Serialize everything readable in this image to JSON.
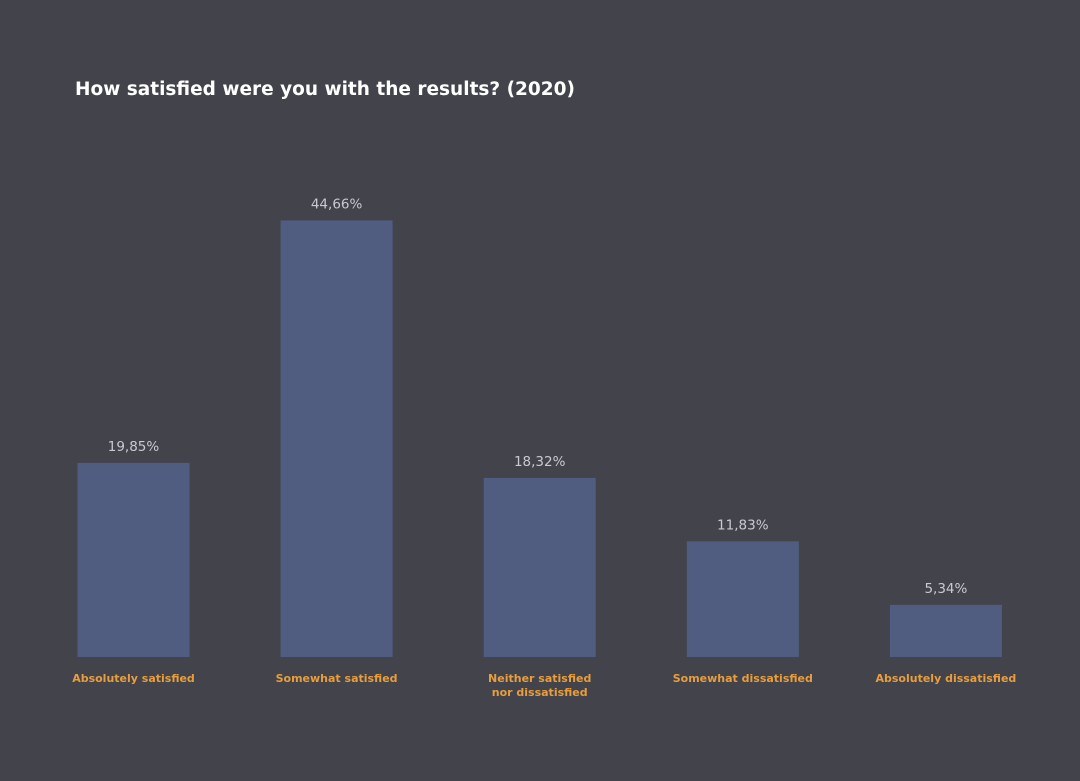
{
  "colors": {
    "background": "#42434b",
    "bar": "#505d80",
    "title": "#ffffff",
    "value_label": "#c8cad2",
    "category_label": "#e89e3c"
  },
  "chart_data": {
    "type": "bar",
    "title": "How satisfied were you with the results? (2020)",
    "categories": [
      "Absolutely satisfied",
      "Somewhat satisfied",
      "Neither satisfied nor dissatisfied",
      "Somewhat dissatisfied",
      "Absolutely dissatisfied"
    ],
    "category_lines": [
      [
        "Absolutely satisfied"
      ],
      [
        "Somewhat satisfied"
      ],
      [
        "Neither satisfied",
        "nor dissatisfied"
      ],
      [
        "Somewhat dissatisfied"
      ],
      [
        "Absolutely dissatisfied"
      ]
    ],
    "values": [
      19.85,
      44.66,
      18.32,
      11.83,
      5.34
    ],
    "value_labels": [
      "19,85%",
      "44,66%",
      "18,32%",
      "11,83%",
      "5,34%"
    ],
    "xlabel": "",
    "ylabel": "",
    "ylim": [
      0,
      50
    ],
    "grid": false,
    "legend": "none"
  }
}
